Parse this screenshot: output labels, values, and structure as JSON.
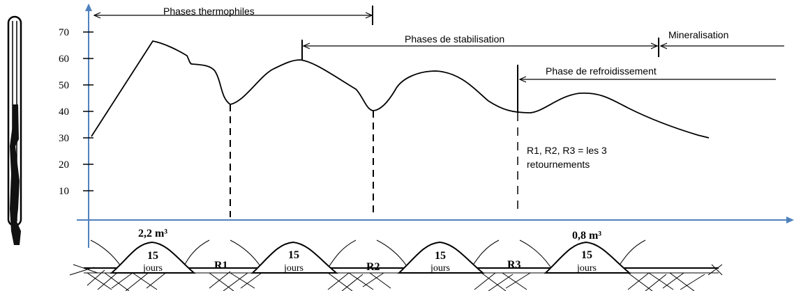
{
  "y_ticks": [
    "70",
    "60",
    "50",
    "40",
    "30",
    "20",
    "10"
  ],
  "phases": {
    "thermophiles": "Phases thermophiles",
    "stabilisation": "Phases de stabilisation",
    "mineralisation": "Mineralisation",
    "refroidissement": "Phase de refroidissement"
  },
  "note": {
    "line1": "R1, R2, R3 = les 3",
    "line2": "retournements"
  },
  "piles": [
    {
      "volume": "2,2 m³",
      "days": "15",
      "unit": "jours"
    },
    {
      "volume": "",
      "days": "15",
      "unit": "jours"
    },
    {
      "volume": "",
      "days": "15",
      "unit": "jours"
    },
    {
      "volume": "0,8 m³",
      "days": "15",
      "unit": "jours"
    }
  ],
  "turnings": [
    "R1",
    "R2",
    "R3"
  ],
  "colors": {
    "axis": "#4f81bd",
    "curve": "#000000",
    "text": "#000000"
  }
}
